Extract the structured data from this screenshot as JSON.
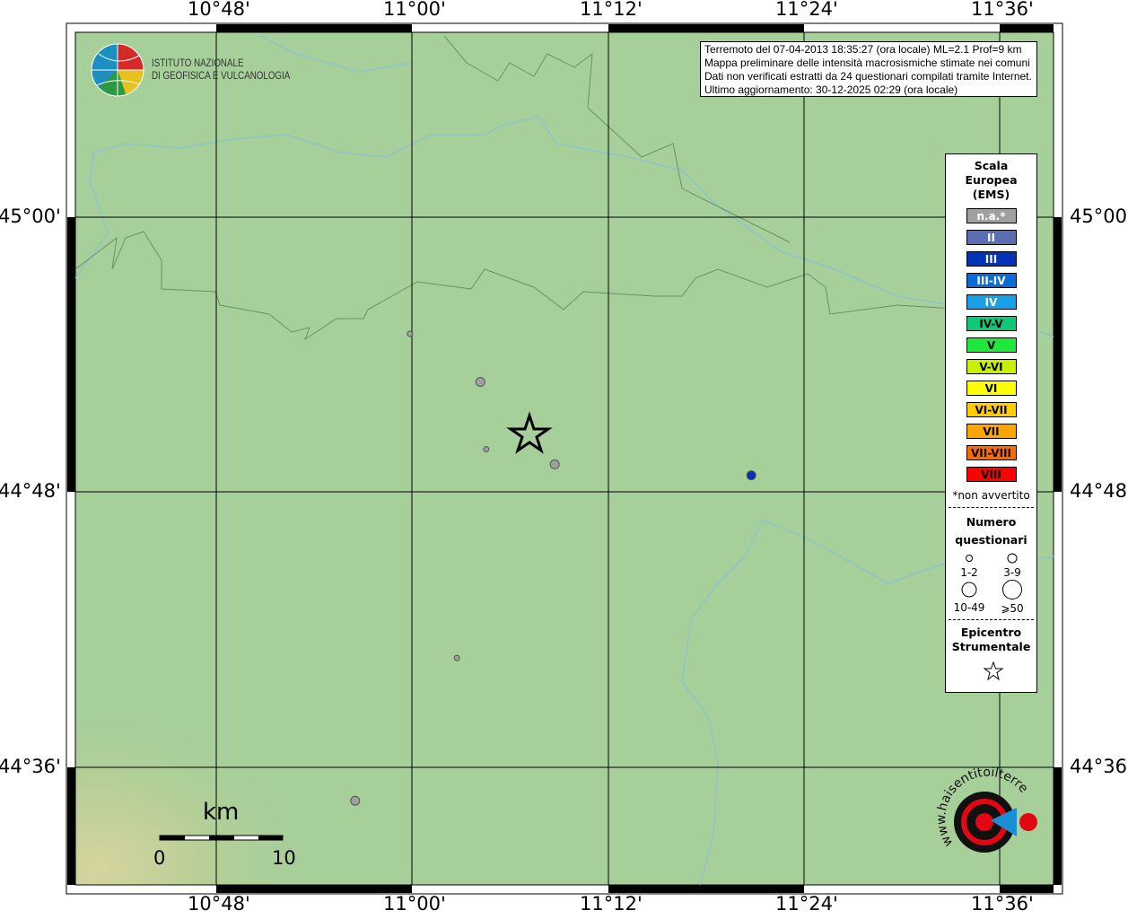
{
  "info_box": {
    "lines": [
      "Terremoto del 07-04-2013 18:35:27 (ora locale) ML=2.1 Prof=9 km",
      "Mappa preliminare delle intensità macrosismiche stimate nei comuni",
      "Dati non verificati estratti da 24 questionari compilati tramite Internet.",
      "Ultimo aggiornamento: 30-12-2025 02:29 (ora locale)"
    ]
  },
  "logo_ingv": {
    "line1": "ISTITUTO NAZIONALE",
    "line2": "DI GEOFISICA E VULCANOLOGIA"
  },
  "logo_hsit": {
    "text": "www.haisentitoilterremoto.it"
  },
  "axes": {
    "x_ticks": [
      "10°48'",
      "11°00'",
      "11°12'",
      "11°24'",
      "11°36'"
    ],
    "y_ticks": [
      "45°00'",
      "44°48'",
      "44°36'"
    ]
  },
  "legend": {
    "title": [
      "Scala",
      "Europea",
      "(EMS)"
    ],
    "classes": [
      {
        "label": "n.a.*",
        "color": "#a0a0a0",
        "text_color": "#ffffff"
      },
      {
        "label": "II",
        "color": "#5b6fb0",
        "text_color": "#ffffff"
      },
      {
        "label": "III",
        "color": "#0033b8",
        "text_color": "#ffffff"
      },
      {
        "label": "III-IV",
        "color": "#0a6ad6",
        "text_color": "#ffffff"
      },
      {
        "label": "IV",
        "color": "#1aa0e6",
        "text_color": "#ffffff"
      },
      {
        "label": "IV-V",
        "color": "#10c878",
        "text_color": "#000000"
      },
      {
        "label": "V",
        "color": "#1ee83a",
        "text_color": "#000000"
      },
      {
        "label": "V-VI",
        "color": "#c8f000",
        "text_color": "#000000"
      },
      {
        "label": "VI",
        "color": "#ffff00",
        "text_color": "#000000"
      },
      {
        "label": "VI-VII",
        "color": "#ffcc00",
        "text_color": "#000000"
      },
      {
        "label": "VII",
        "color": "#ffa500",
        "text_color": "#000000"
      },
      {
        "label": "VII-VIII",
        "color": "#ff6a00",
        "text_color": "#000000"
      },
      {
        "label": "VIII",
        "color": "#ff0000",
        "text_color": "#000000"
      }
    ],
    "footnote": "*non avvertito",
    "count_title": [
      "Numero",
      "questionari"
    ],
    "count_sizes": [
      "1-2",
      "3-9",
      "10-49",
      "⩾50"
    ],
    "epicenter_title": [
      "Epicentro",
      "Strumentale"
    ]
  },
  "scale_bar": {
    "unit": "km",
    "min": "0",
    "max": "10"
  },
  "points": [
    {
      "lon": 10.998,
      "lat": 44.915,
      "class": "n.a.*",
      "size": "1-2"
    },
    {
      "lon": 11.07,
      "lat": 44.88,
      "class": "n.a.*",
      "size": "3-9"
    },
    {
      "lon": 11.076,
      "lat": 44.831,
      "class": "n.a.*",
      "size": "1-2"
    },
    {
      "lon": 11.146,
      "lat": 44.82,
      "class": "n.a.*",
      "size": "3-9"
    },
    {
      "lon": 11.347,
      "lat": 44.812,
      "class": "III",
      "size": "3-9"
    },
    {
      "lon": 11.046,
      "lat": 44.679,
      "class": "n.a.*",
      "size": "1-2"
    },
    {
      "lon": 10.942,
      "lat": 44.575,
      "class": "n.a.*",
      "size": "3-9"
    }
  ],
  "epicenter": {
    "lon": 11.118,
    "lat": 44.823
  }
}
